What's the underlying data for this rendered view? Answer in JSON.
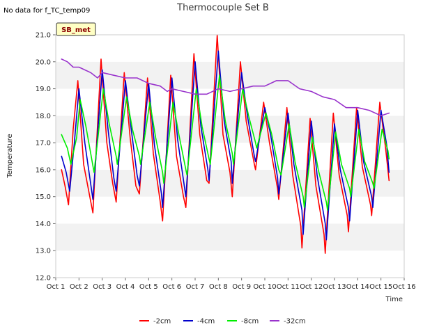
{
  "corner_note": "No data for f_TC_temp09",
  "badge": "SB_met",
  "chart_data": {
    "type": "line",
    "title": "Thermocouple Set B",
    "xlabel": "Time",
    "ylabel": "Temperature",
    "xlim": [
      1,
      16
    ],
    "ylim": [
      12.0,
      21.0
    ],
    "x_ticks": [
      1,
      2,
      3,
      4,
      5,
      6,
      7,
      8,
      9,
      10,
      11,
      12,
      13,
      14,
      15,
      16
    ],
    "x_tick_labels": [
      "Oct 1",
      "Oct 2",
      "Oct 3",
      "Oct 4",
      "Oct 5",
      "Oct 6",
      "Oct 7",
      "Oct 8",
      "Oct 9",
      "Oct 10",
      "Oct 11",
      "Oct 12",
      "Oct 13",
      "Oct 14",
      "Oct 15",
      "Oct 16"
    ],
    "y_ticks": [
      12.0,
      13.0,
      14.0,
      15.0,
      16.0,
      17.0,
      18.0,
      19.0,
      20.0,
      21.0
    ],
    "y_tick_labels": [
      "12.0",
      "13.0",
      "14.0",
      "15.0",
      "16.0",
      "17.0",
      "18.0",
      "19.0",
      "20.0",
      "21.0"
    ],
    "grid": "horizontal alternating bands",
    "legend_position": "bottom",
    "series": [
      {
        "name": "-2cm",
        "color": "#ff0000",
        "x": [
          1.25,
          1.4,
          1.55,
          1.75,
          1.95,
          2.2,
          2.6,
          2.95,
          3.2,
          3.45,
          3.6,
          3.95,
          4.2,
          4.45,
          4.6,
          4.95,
          5.2,
          5.5,
          5.6,
          5.95,
          6.2,
          6.5,
          6.6,
          6.95,
          7.2,
          7.5,
          7.6,
          7.95,
          8.2,
          8.5,
          8.6,
          8.95,
          9.2,
          9.55,
          9.6,
          9.95,
          10.2,
          10.55,
          10.6,
          10.95,
          11.2,
          11.55,
          11.6,
          11.95,
          12.2,
          12.55,
          12.6,
          12.95,
          13.2,
          13.55,
          13.6,
          13.95,
          14.2,
          14.55,
          14.6,
          14.95,
          15.2,
          15.35
        ],
        "y": [
          16.0,
          15.4,
          14.7,
          17.5,
          19.3,
          16.2,
          14.4,
          20.1,
          17.0,
          15.5,
          14.8,
          19.6,
          17.2,
          15.4,
          15.1,
          19.4,
          16.6,
          14.8,
          14.1,
          19.5,
          16.5,
          15.0,
          14.6,
          20.3,
          17.3,
          15.6,
          15.5,
          21.0,
          17.3,
          15.9,
          15.0,
          20.0,
          17.8,
          16.2,
          16.0,
          18.5,
          17.0,
          15.3,
          14.9,
          18.3,
          15.8,
          13.9,
          13.1,
          17.9,
          15.4,
          13.6,
          12.9,
          18.1,
          15.8,
          14.3,
          13.7,
          18.3,
          16.1,
          14.7,
          14.3,
          18.5,
          16.8,
          15.6
        ]
      },
      {
        "name": "-4cm",
        "color": "#0000cc",
        "x": [
          1.25,
          1.45,
          1.6,
          1.8,
          2.0,
          2.25,
          2.6,
          3.0,
          3.25,
          3.5,
          3.6,
          4.0,
          4.25,
          4.5,
          4.6,
          5.0,
          5.25,
          5.55,
          5.6,
          6.0,
          6.25,
          6.55,
          6.6,
          7.0,
          7.25,
          7.55,
          7.6,
          8.0,
          8.25,
          8.55,
          8.6,
          9.0,
          9.25,
          9.55,
          9.6,
          10.0,
          10.25,
          10.55,
          10.6,
          11.0,
          11.25,
          11.6,
          11.65,
          12.0,
          12.25,
          12.6,
          12.65,
          13.0,
          13.25,
          13.6,
          13.65,
          14.0,
          14.25,
          14.6,
          14.65,
          15.0,
          15.25,
          15.35
        ],
        "y": [
          16.5,
          15.9,
          15.2,
          17.0,
          19.0,
          17.0,
          14.9,
          19.7,
          17.5,
          15.7,
          15.2,
          19.3,
          17.5,
          15.8,
          15.4,
          19.2,
          16.9,
          15.1,
          14.6,
          19.4,
          17.1,
          15.3,
          15.0,
          20.0,
          17.6,
          16.0,
          15.6,
          20.4,
          17.8,
          16.3,
          15.5,
          19.6,
          18.0,
          16.5,
          16.3,
          18.3,
          17.3,
          15.7,
          15.1,
          18.1,
          16.2,
          14.5,
          13.6,
          17.8,
          15.8,
          14.0,
          13.4,
          17.7,
          16.0,
          14.6,
          14.1,
          18.2,
          16.3,
          15.0,
          14.6,
          18.2,
          16.9,
          15.9
        ]
      },
      {
        "name": "-8cm",
        "color": "#00ee00",
        "x": [
          1.25,
          1.5,
          1.65,
          1.9,
          2.05,
          2.3,
          2.65,
          3.05,
          3.3,
          3.6,
          3.65,
          4.05,
          4.3,
          4.6,
          4.65,
          5.05,
          5.3,
          5.6,
          5.65,
          6.05,
          6.3,
          6.6,
          6.65,
          7.05,
          7.3,
          7.6,
          7.65,
          8.05,
          8.3,
          8.6,
          8.65,
          9.05,
          9.3,
          9.6,
          9.65,
          10.05,
          10.3,
          10.6,
          10.7,
          11.05,
          11.3,
          11.65,
          11.7,
          12.05,
          12.3,
          12.65,
          12.7,
          13.05,
          13.3,
          13.65,
          13.7,
          14.05,
          14.3,
          14.65,
          14.7,
          15.05,
          15.3,
          15.35
        ],
        "y": [
          17.3,
          16.8,
          16.2,
          17.2,
          18.6,
          17.6,
          15.9,
          19.0,
          17.7,
          16.5,
          16.2,
          18.7,
          17.5,
          16.5,
          16.2,
          18.5,
          17.2,
          15.9,
          15.5,
          18.5,
          17.3,
          16.0,
          15.8,
          19.0,
          17.6,
          16.4,
          16.2,
          19.5,
          17.8,
          16.6,
          16.2,
          19.0,
          18.0,
          17.0,
          16.8,
          18.1,
          17.3,
          16.0,
          15.8,
          17.7,
          16.3,
          15.0,
          14.6,
          17.2,
          16.0,
          14.8,
          14.5,
          17.4,
          16.2,
          15.3,
          15.0,
          17.5,
          16.3,
          15.5,
          15.3,
          17.5,
          16.7,
          16.4
        ]
      },
      {
        "name": "-32cm",
        "color": "#9933cc",
        "x": [
          1.25,
          1.5,
          1.75,
          2.0,
          2.5,
          2.8,
          3.0,
          3.5,
          4.0,
          4.5,
          5.0,
          5.5,
          5.8,
          6.0,
          6.5,
          7.0,
          7.5,
          8.0,
          8.5,
          9.0,
          9.5,
          10.0,
          10.5,
          11.0,
          11.5,
          12.0,
          12.5,
          13.0,
          13.5,
          14.0,
          14.5,
          15.0,
          15.35
        ],
        "y": [
          20.1,
          20.0,
          19.8,
          19.8,
          19.6,
          19.4,
          19.6,
          19.5,
          19.4,
          19.4,
          19.2,
          19.1,
          18.9,
          19.0,
          18.9,
          18.8,
          18.8,
          19.0,
          18.9,
          19.0,
          19.1,
          19.1,
          19.3,
          19.3,
          19.0,
          18.9,
          18.7,
          18.6,
          18.3,
          18.3,
          18.2,
          18.0,
          18.1
        ]
      }
    ]
  }
}
